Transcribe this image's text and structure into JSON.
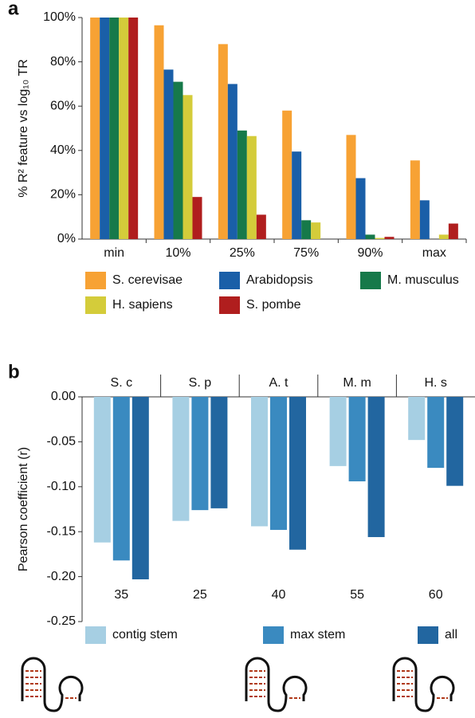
{
  "chart_data": [
    {
      "type": "bar",
      "panel_label": "a",
      "y_label": "% R² feature vs log₁₀ TR",
      "categories": [
        "min",
        "10%",
        "25%",
        "75%",
        "90%",
        "max"
      ],
      "series": [
        {
          "name": "S. cerevisae",
          "color": "#f7a234",
          "values": [
            100,
            96.5,
            88,
            58,
            47,
            35.5
          ]
        },
        {
          "name": "Arabidopsis",
          "color": "#1a5fa8",
          "values": [
            100,
            76.5,
            70,
            39.5,
            27.5,
            17.5
          ]
        },
        {
          "name": "M. musculus",
          "color": "#16794a",
          "values": [
            100,
            71,
            49,
            8.5,
            2,
            0
          ]
        },
        {
          "name": "H. sapiens",
          "color": "#d4cc3a",
          "values": [
            100,
            65,
            46.5,
            7.5,
            0.5,
            2
          ]
        },
        {
          "name": "S. pombe",
          "color": "#b01e1e",
          "values": [
            100,
            19,
            11,
            0,
            1,
            7
          ]
        }
      ],
      "ylim": [
        0,
        100
      ],
      "yticks": [
        {
          "value": 0,
          "label": "0%"
        },
        {
          "value": 20,
          "label": "20%"
        },
        {
          "value": 40,
          "label": "40%"
        },
        {
          "value": 60,
          "label": "60%"
        },
        {
          "value": 80,
          "label": "80%"
        },
        {
          "value": 100,
          "label": "100%"
        }
      ]
    },
    {
      "type": "bar",
      "panel_label": "b",
      "y_label": "Pearson coefficient (r)",
      "categories": [
        "S. c",
        "S. p",
        "A. t",
        "M. m",
        "H. s"
      ],
      "group_labels": [
        35,
        25,
        40,
        55,
        60
      ],
      "series": [
        {
          "name": "contig stem",
          "color": "#a6cfe3",
          "values": [
            -0.162,
            -0.138,
            -0.144,
            -0.077,
            -0.048
          ]
        },
        {
          "name": "max stem",
          "color": "#3a8ac0",
          "values": [
            -0.182,
            -0.126,
            -0.148,
            -0.094,
            -0.079
          ]
        },
        {
          "name": "all",
          "color": "#2266a0",
          "values": [
            -0.203,
            -0.124,
            -0.17,
            -0.156,
            -0.099
          ]
        }
      ],
      "ylim": [
        -0.25,
        0
      ],
      "yticks": [
        {
          "value": 0,
          "label": "0.00"
        },
        {
          "value": -0.05,
          "label": "-0.05"
        },
        {
          "value": -0.1,
          "label": "-0.10"
        },
        {
          "value": -0.15,
          "label": "-0.15"
        },
        {
          "value": -0.2,
          "label": "-0.20"
        },
        {
          "value": -0.25,
          "label": "-0.25"
        }
      ]
    }
  ]
}
